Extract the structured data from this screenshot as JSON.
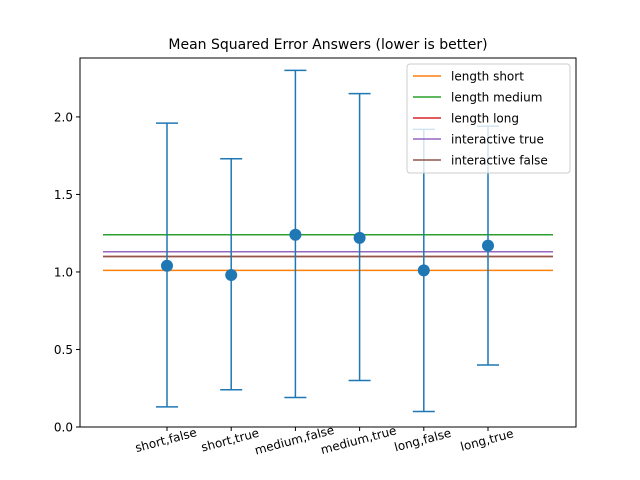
{
  "chart_data": {
    "type": "scatter",
    "title": "Mean Squared Error Answers (lower is better)",
    "xlabel": "",
    "ylabel": "",
    "categories": [
      "short,false",
      "short,true",
      "medium,false",
      "medium,true",
      "long,false",
      "long,true"
    ],
    "points": [
      {
        "category": "short,false",
        "mean": 1.04,
        "lower": 0.13,
        "upper": 1.96
      },
      {
        "category": "short,true",
        "mean": 0.98,
        "lower": 0.24,
        "upper": 1.73
      },
      {
        "category": "medium,false",
        "mean": 1.24,
        "lower": 0.19,
        "upper": 2.3
      },
      {
        "category": "medium,true",
        "mean": 1.22,
        "lower": 0.3,
        "upper": 2.15
      },
      {
        "category": "long,false",
        "mean": 1.01,
        "lower": 0.1,
        "upper": 1.92
      },
      {
        "category": "long,true",
        "mean": 1.17,
        "lower": 0.4,
        "upper": 1.94
      }
    ],
    "reference_lines": [
      {
        "name": "length short",
        "value": 1.01,
        "color": "#ff7f0e"
      },
      {
        "name": "length medium",
        "value": 1.24,
        "color": "#2ca02c"
      },
      {
        "name": "length long",
        "value": 1.1,
        "color": "#d62728"
      },
      {
        "name": "interactive true",
        "value": 1.13,
        "color": "#9467bd"
      },
      {
        "name": "interactive false",
        "value": 1.1,
        "color": "#8c564b"
      }
    ],
    "point_color": "#1f77b4",
    "ylim": [
      0,
      2.38
    ],
    "y_ticks": [
      0.0,
      0.5,
      1.0,
      1.5,
      2.0
    ],
    "y_tick_labels": [
      "0.0",
      "0.5",
      "1.0",
      "1.5",
      "2.0"
    ],
    "legend_position": "top-right",
    "grid": false
  }
}
